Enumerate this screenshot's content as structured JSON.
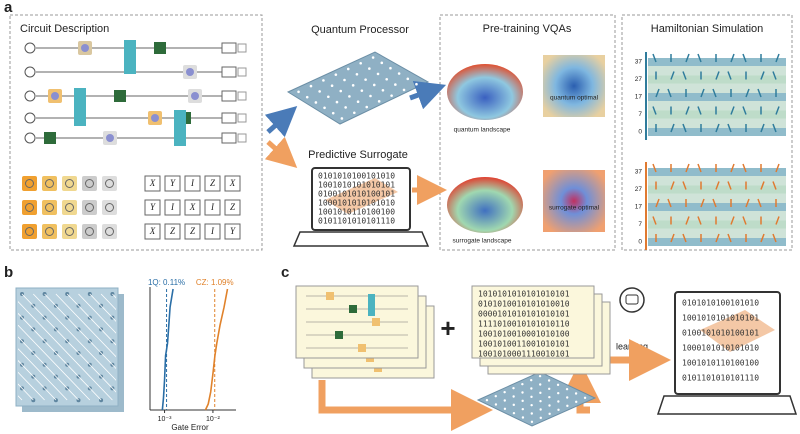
{
  "panel_a": {
    "label": "a",
    "circuit_description": {
      "title": "Circuit Description",
      "pauli_rows": [
        [
          "X",
          "Y",
          "I",
          "Z",
          "X"
        ],
        [
          "Y",
          "I",
          "X",
          "I",
          "Z"
        ],
        [
          "X",
          "Z",
          "Z",
          "I",
          "Y"
        ]
      ]
    },
    "quantum_processor": {
      "title": "Quantum Processor"
    },
    "predictive_surrogate": {
      "title": "Predictive Surrogate",
      "binary": [
        "0101010100101010",
        "1001010101010101",
        "0100101010100101",
        "1000101010101010",
        "1001010110100100",
        "0101101010101110"
      ]
    },
    "pretraining": {
      "title": "Pre-training VQAs",
      "quantum_landscape": "quantum landscape",
      "quantum_optimal": "quantum optimal",
      "surrogate_landscape": "surrogate landscape",
      "surrogate_optimal": "surrogate optimal"
    },
    "hamiltonian": {
      "title": "Hamiltonian Simulation",
      "top_ticks": [
        37,
        27,
        17,
        7,
        0
      ],
      "bottom_ticks": [
        37,
        27,
        17,
        7,
        0
      ]
    }
  },
  "panel_b": {
    "label": "b",
    "chart": {
      "type": "line",
      "xlabel": "Gate Error",
      "xscale": "log",
      "xlim": [
        0.0005,
        0.03
      ],
      "ylim": [
        0,
        1
      ],
      "xticks": [
        {
          "value": 0.001,
          "label": "10⁻³"
        },
        {
          "value": 0.01,
          "label": "10⁻²"
        }
      ],
      "series": [
        {
          "name": "1Q",
          "color": "#2a6ea6",
          "x": [
            0.0009,
            0.00095,
            0.001,
            0.00105,
            0.0011,
            0.00115,
            0.0012,
            0.0013,
            0.0015
          ],
          "values": [
            0,
            0.1,
            0.25,
            0.45,
            0.5,
            0.55,
            0.65,
            0.85,
            1
          ]
        },
        {
          "name": "CZ",
          "color": "#e0822b",
          "x": [
            0.007,
            0.008,
            0.009,
            0.01,
            0.011,
            0.012,
            0.014,
            0.017,
            0.02
          ],
          "values": [
            0,
            0.05,
            0.15,
            0.3,
            0.45,
            0.55,
            0.7,
            0.85,
            1
          ]
        }
      ],
      "markers": [
        {
          "label": "1Q: 0.11%",
          "value": 0.0011,
          "color": "#2a6ea6"
        },
        {
          "label": "CZ: 1.09%",
          "value": 0.0109,
          "color": "#e0822b"
        }
      ]
    }
  },
  "panel_c": {
    "label": "c",
    "plus": "+",
    "learning": "learning",
    "paper_binary": [
      "1010101010101010101",
      "0101010010101010010",
      "0000101010101010101",
      "1111010010101010110",
      "1001010010001010100",
      "1001010011001010101",
      "1001010001110010101"
    ],
    "laptop_binary": [
      "0101010100101010",
      "1001010101010101",
      "0100101010100101",
      "1000101010101010",
      "1001010110100100",
      "0101101010101110"
    ]
  }
}
